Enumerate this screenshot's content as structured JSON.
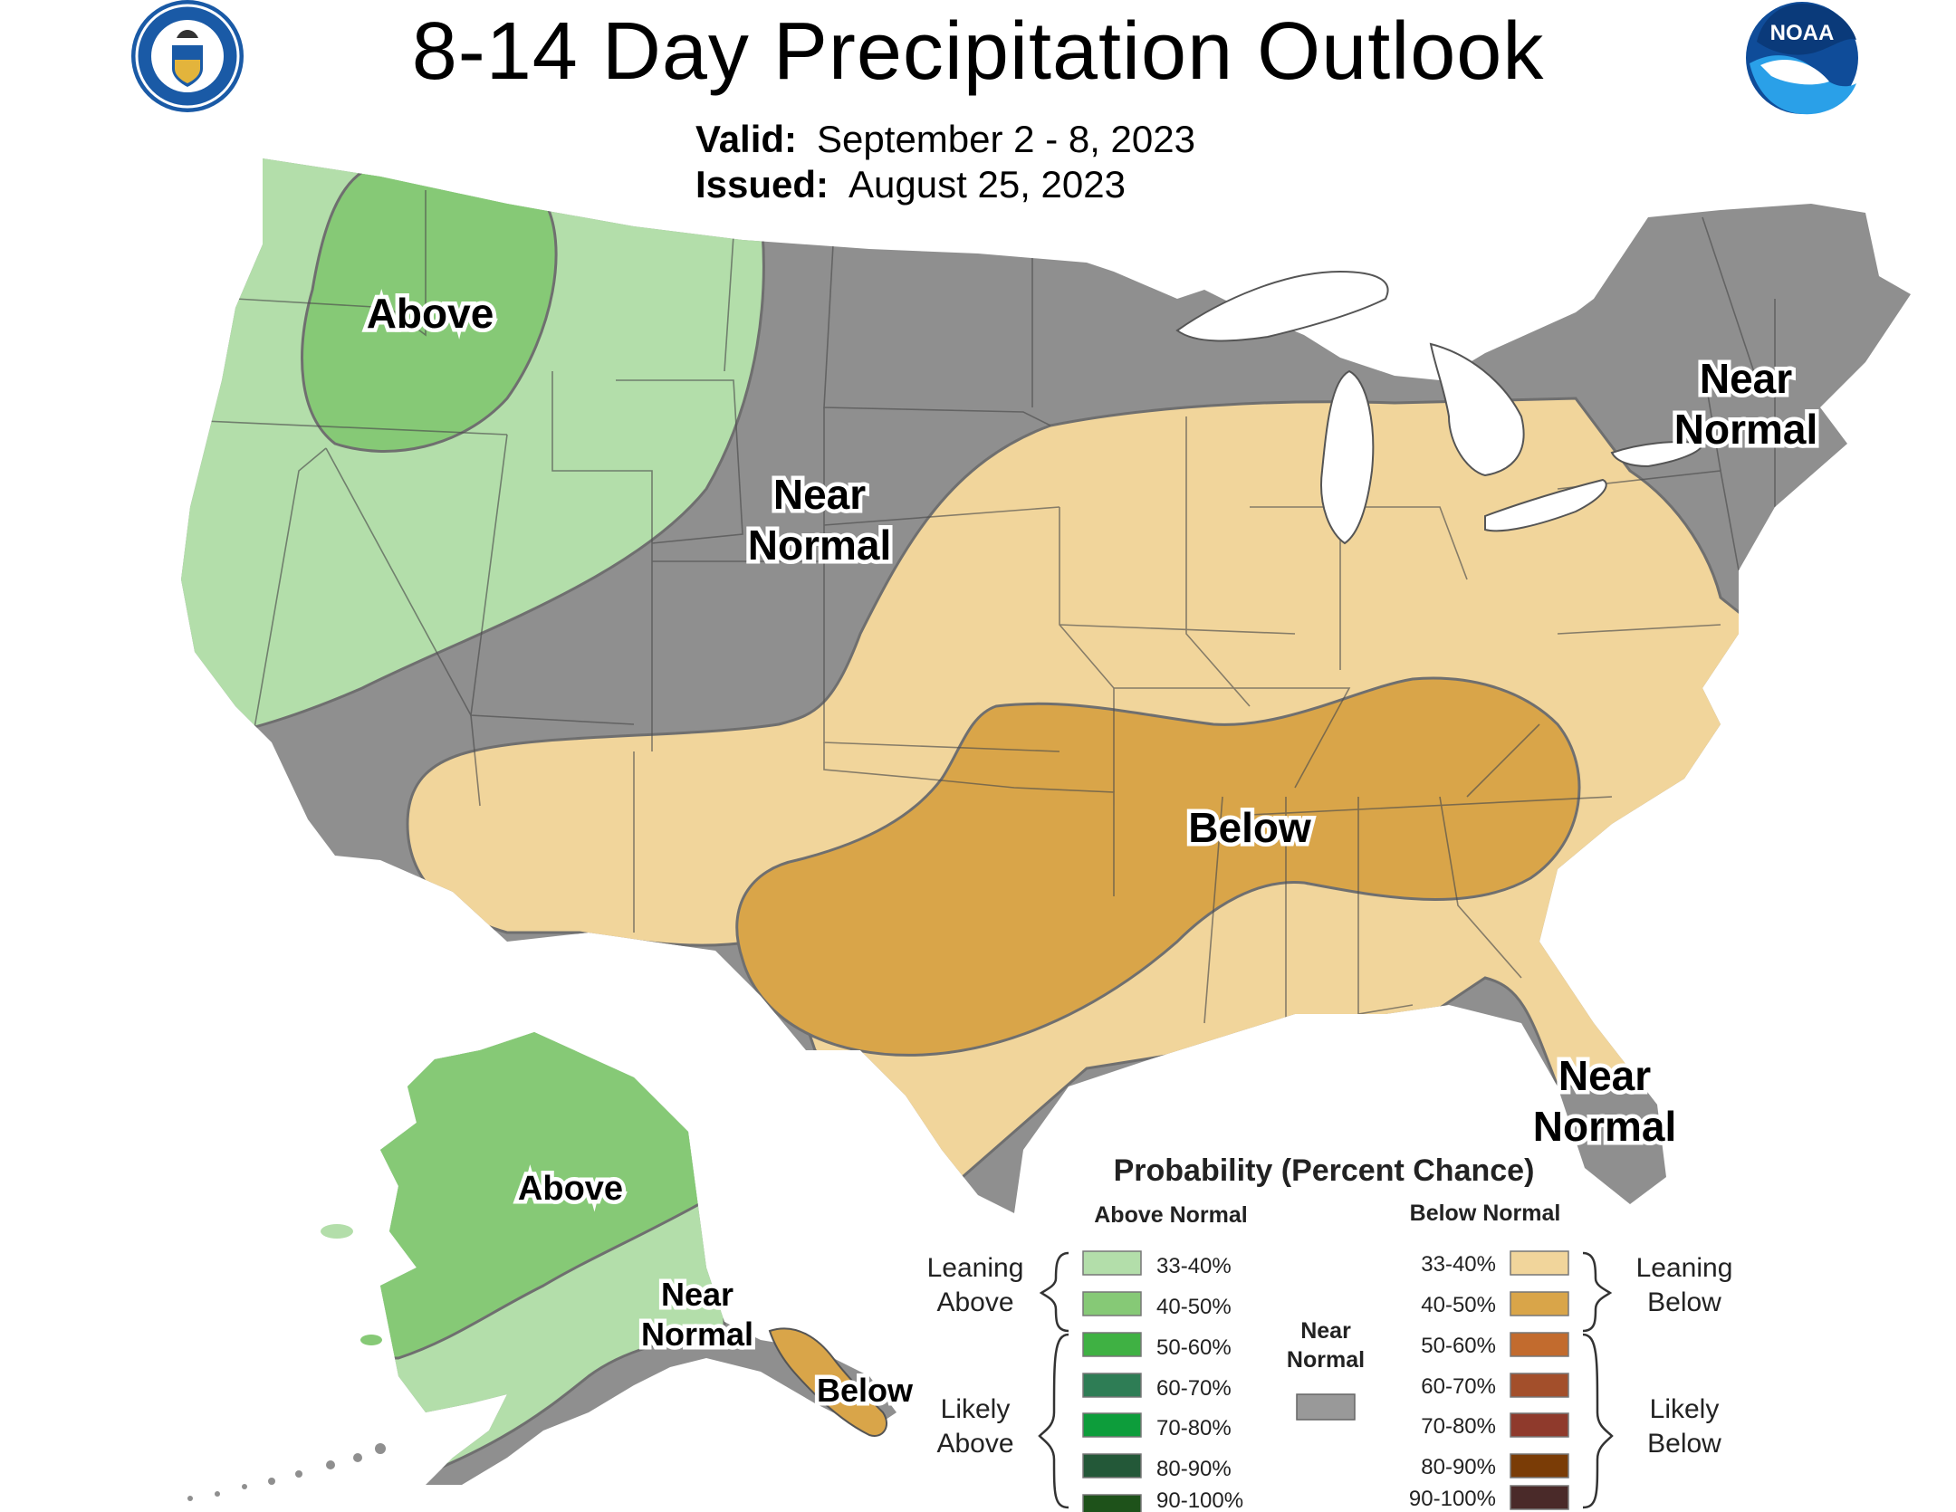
{
  "title": "8-14 Day Precipitation Outlook",
  "valid_label": "Valid:",
  "valid_value": "September 2 - 8, 2023",
  "issued_label": "Issued:",
  "issued_value": "August 25, 2023",
  "logos": {
    "left": {
      "icon": "department-of-commerce-seal",
      "text": "DEPARTMENT OF COMMERCE · UNITED STATES OF AMERICA"
    },
    "right": {
      "icon": "noaa-logo",
      "text": "NOAA"
    }
  },
  "colors": {
    "above_33_40": "#b3deaa",
    "above_40_50": "#86c976",
    "near_normal": "#8f8f8f",
    "below_33_40": "#f1d59b",
    "below_40_50": "#d9a549"
  },
  "region_labels": {
    "conus_above": "Above",
    "conus_near_normal_1": "Near",
    "conus_near_normal_2": "Normal",
    "northeast_near_1": "Near",
    "northeast_near_2": "Normal",
    "florida_near_1": "Near",
    "florida_near_2": "Normal",
    "conus_below": "Below",
    "alaska_above": "Above",
    "alaska_near_1": "Near",
    "alaska_near_2": "Normal",
    "alaska_below": "Below"
  },
  "legend": {
    "title": "Probability (Percent Chance)",
    "above_header": "Above Normal",
    "below_header": "Below Normal",
    "leaning_above_1": "Leaning",
    "leaning_above_2": "Above",
    "likely_above_1": "Likely",
    "likely_above_2": "Above",
    "leaning_below_1": "Leaning",
    "leaning_below_2": "Below",
    "likely_below_1": "Likely",
    "likely_below_2": "Below",
    "near_1": "Near",
    "near_2": "Normal",
    "near_color": "#999999",
    "above": [
      {
        "label": "33-40%",
        "color": "#b3deaa"
      },
      {
        "label": "40-50%",
        "color": "#86c976"
      },
      {
        "label": "50-60%",
        "color": "#3fb143"
      },
      {
        "label": "60-70%",
        "color": "#2e7d55"
      },
      {
        "label": "70-80%",
        "color": "#0d9d3b"
      },
      {
        "label": "80-90%",
        "color": "#235838"
      },
      {
        "label": "90-100%",
        "color": "#1e521a"
      }
    ],
    "below": [
      {
        "label": "33-40%",
        "color": "#f1d59b"
      },
      {
        "label": "40-50%",
        "color": "#d9a549"
      },
      {
        "label": "50-60%",
        "color": "#c26b2e"
      },
      {
        "label": "60-70%",
        "color": "#a34f2b"
      },
      {
        "label": "70-80%",
        "color": "#8f3a2c"
      },
      {
        "label": "80-90%",
        "color": "#7a3c06"
      },
      {
        "label": "90-100%",
        "color": "#4a2a29"
      }
    ]
  }
}
